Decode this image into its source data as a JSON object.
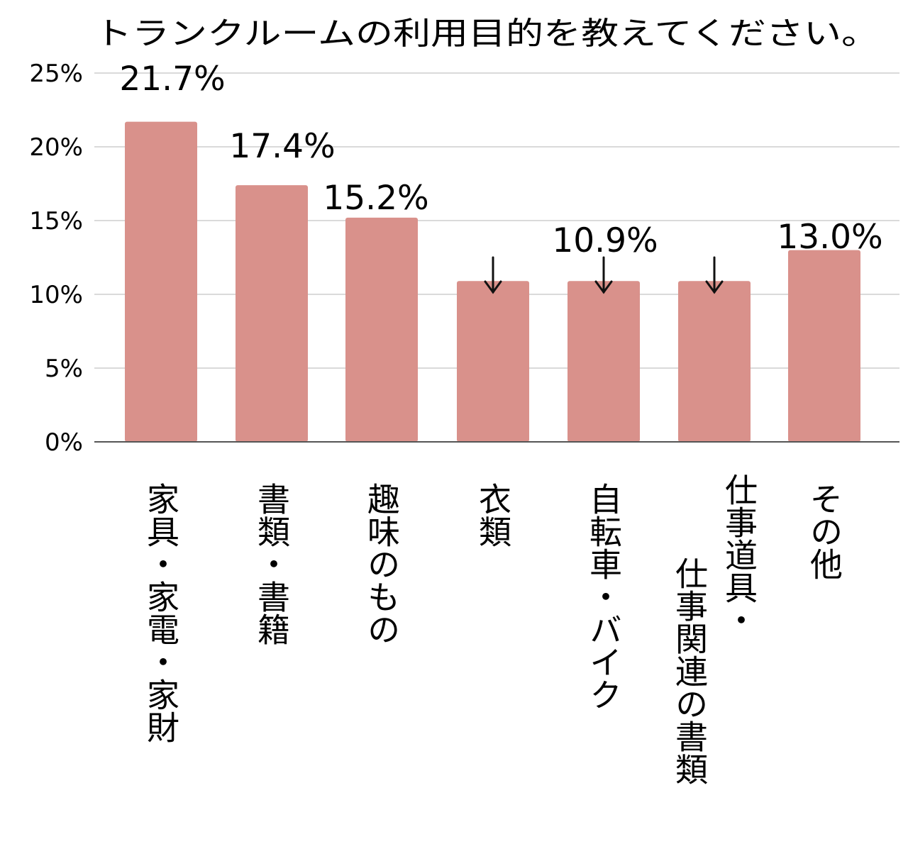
{
  "chart_data": {
    "type": "bar",
    "title": "トランクルームの利用目的を教えてください。",
    "xlabel": "",
    "ylabel": "",
    "ylim": [
      0,
      25
    ],
    "yticks": [
      "0%",
      "5%",
      "10%",
      "15%",
      "20%",
      "25%"
    ],
    "ytick_values": [
      0,
      5,
      10,
      15,
      20,
      25
    ],
    "grid": true,
    "bar_color": "#d9918b",
    "categories": [
      {
        "lines": [
          "家具・家電・家財"
        ]
      },
      {
        "lines": [
          "書類・書籍"
        ]
      },
      {
        "lines": [
          "趣味のもの"
        ]
      },
      {
        "lines": [
          "衣類"
        ]
      },
      {
        "lines": [
          "自転車・バイク"
        ]
      },
      {
        "lines": [
          "仕事道具・",
          "仕事関連の書類"
        ]
      },
      {
        "lines": [
          "その他"
        ]
      }
    ],
    "values": [
      21.7,
      17.4,
      15.2,
      10.9,
      10.9,
      10.9,
      13.0
    ],
    "value_labels": [
      "21.7%",
      "17.4%",
      "15.2%",
      "",
      "10.9%",
      "",
      "13.0%"
    ],
    "arrow_on_bars": [
      false,
      false,
      false,
      true,
      true,
      true,
      false
    ]
  }
}
